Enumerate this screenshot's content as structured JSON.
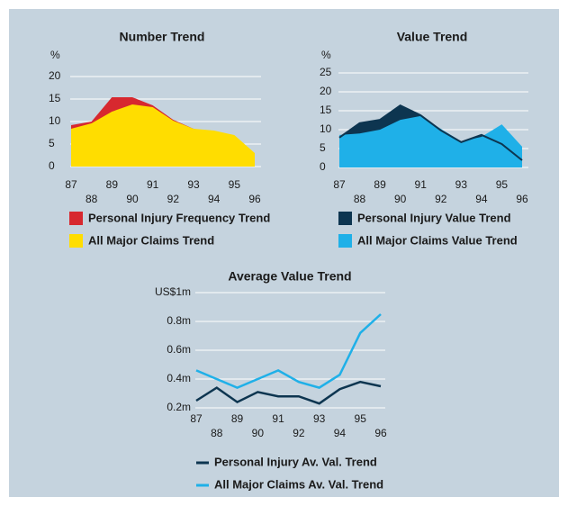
{
  "chart_data": [
    {
      "type": "area",
      "title": "Number Trend",
      "y_unit": "%",
      "categories": [
        "87",
        "88",
        "89",
        "90",
        "91",
        "92",
        "93",
        "94",
        "95",
        "96"
      ],
      "ylim": [
        0,
        20
      ],
      "yticks": [
        0,
        5,
        10,
        15,
        20
      ],
      "grid": true,
      "series": [
        {
          "name": "Personal Injury Frequency Trend",
          "color": "#d7282f",
          "values": [
            9.2,
            10,
            15.4,
            15.4,
            13.6,
            10.4,
            8.4,
            7.4,
            5,
            1.4
          ]
        },
        {
          "name": "All Major Claims Trend",
          "color": "#ffdd00",
          "values": [
            8.4,
            9.6,
            12.2,
            13.8,
            13.2,
            10.2,
            8.4,
            8,
            7,
            3
          ]
        }
      ]
    },
    {
      "type": "area",
      "title": "Value Trend",
      "y_unit": "%",
      "categories": [
        "87",
        "88",
        "89",
        "90",
        "91",
        "92",
        "93",
        "94",
        "95",
        "96"
      ],
      "ylim": [
        0,
        25
      ],
      "yticks": [
        0,
        5,
        10,
        15,
        20,
        25
      ],
      "grid": true,
      "series": [
        {
          "name": "Personal Injury Value Trend",
          "color": "#0d3550",
          "values": [
            7.9,
            11.7,
            12.6,
            16.4,
            13.8,
            9.8,
            6.7,
            8.6,
            6.2,
            1.9
          ]
        },
        {
          "name": "All Major Claims Value Trend",
          "color": "#1fb0e8",
          "values": [
            8.6,
            9,
            10,
            12.6,
            13.6,
            10.2,
            6.9,
            8.1,
            11.4,
            5.5
          ]
        }
      ]
    },
    {
      "type": "line",
      "title": "Average Value Trend",
      "categories": [
        "87",
        "88",
        "89",
        "90",
        "91",
        "92",
        "93",
        "94",
        "95",
        "96"
      ],
      "ylim": [
        0.2,
        1
      ],
      "yticks": [
        {
          "value": 0.2,
          "label": "0.2m"
        },
        {
          "value": 0.4,
          "label": "0.4m"
        },
        {
          "value": 0.6,
          "label": "0.6m"
        },
        {
          "value": 0.8,
          "label": "0.8m"
        },
        {
          "value": 1,
          "label": "US$1m"
        }
      ],
      "grid": true,
      "series": [
        {
          "name": "Personal Injury Av. Val. Trend",
          "color": "#0d3550",
          "values": [
            0.25,
            0.34,
            0.24,
            0.31,
            0.28,
            0.28,
            0.23,
            0.33,
            0.38,
            0.35
          ]
        },
        {
          "name": "All Major Claims Av. Val. Trend",
          "color": "#1fb0e8",
          "values": [
            0.46,
            0.4,
            0.34,
            0.4,
            0.46,
            0.38,
            0.34,
            0.43,
            0.72,
            0.85
          ]
        }
      ]
    }
  ]
}
